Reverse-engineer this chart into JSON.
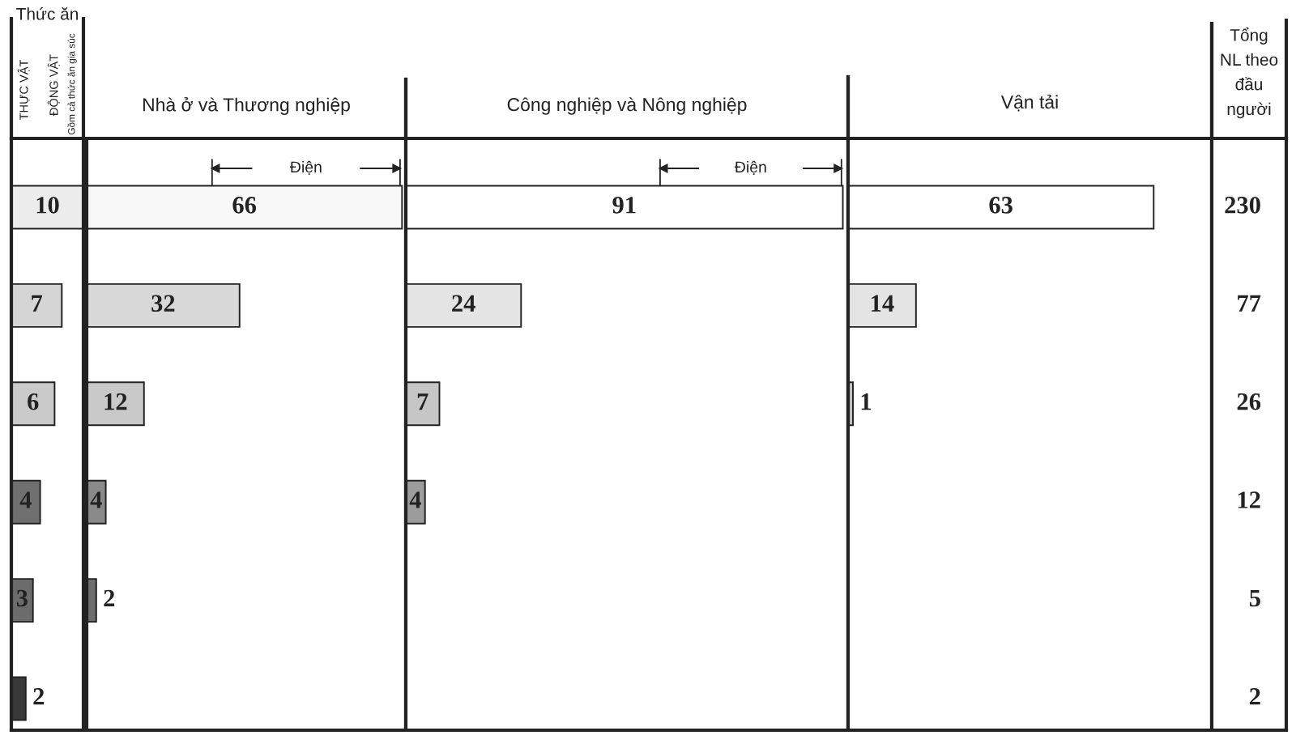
{
  "chart_data": [
    {
      "type": "bar",
      "orientation": "horizontal",
      "title": "Thức ăn",
      "annotations": [
        "THỰC VẬT",
        "ĐỘNG VẬT",
        "Gồm cả thức ăn gia súc"
      ],
      "categories": [
        null,
        null,
        null,
        null,
        null,
        null
      ],
      "data_labels": true,
      "series": [
        {
          "type": "bar",
          "values": [
            10,
            7,
            6,
            4,
            3,
            2
          ],
          "colors": [
            "#ececec",
            "#d5d5d5",
            "#cacaca",
            "#707070",
            "#6c6c6c",
            "#3a3a3a"
          ]
        }
      ]
    },
    {
      "type": "bar",
      "orientation": "horizontal",
      "title": "Nhà ở và Thương nghiệp",
      "annotations": [
        "Điện"
      ],
      "categories": [
        null,
        null,
        null,
        null,
        null,
        null
      ],
      "data_labels": true,
      "series": [
        {
          "type": "bar",
          "values": [
            66,
            32,
            12,
            4,
            2,
            null
          ],
          "colors": [
            "#f8f8f8",
            "#d8d8d8",
            "#c9c9c9",
            "#8a8a8a",
            "#6e6e6e",
            null
          ]
        }
      ]
    },
    {
      "type": "bar",
      "orientation": "horizontal",
      "title": "Công nghiệp và Nông nghiệp",
      "annotations": [
        "Điện"
      ],
      "categories": [
        null,
        null,
        null,
        null,
        null,
        null
      ],
      "data_labels": true,
      "series": [
        {
          "type": "bar",
          "values": [
            91,
            24,
            7,
            4,
            null,
            null
          ],
          "colors": [
            "#ffffff",
            "#e4e4e4",
            "#c6c6c6",
            "#9c9c9c",
            null,
            null
          ]
        }
      ]
    },
    {
      "type": "bar",
      "orientation": "horizontal",
      "title": "Vận tải",
      "categories": [
        null,
        null,
        null,
        null,
        null,
        null
      ],
      "data_labels": true,
      "series": [
        {
          "type": "bar",
          "values": [
            63,
            14,
            1,
            null,
            null,
            null
          ],
          "colors": [
            "#ffffff",
            "#e4e4e4",
            "#c4c4c4",
            null,
            null,
            null
          ]
        }
      ]
    },
    {
      "type": "other",
      "title": "Tổng\nNL theo\nđầu\nngười",
      "annotations": [
        "230",
        "77",
        "26",
        "12",
        "5",
        "2"
      ]
    }
  ]
}
